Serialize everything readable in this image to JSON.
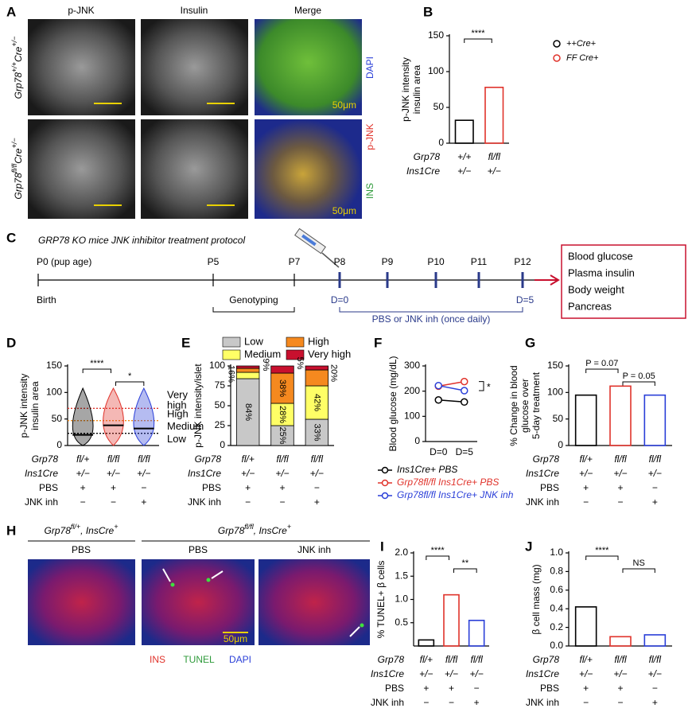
{
  "panel_labels": [
    "A",
    "B",
    "C",
    "D",
    "E",
    "F",
    "G",
    "H",
    "I",
    "J"
  ],
  "panel_a": {
    "columns": [
      "p-JNK",
      "Insulin",
      "Merge"
    ],
    "rows": [
      {
        "gene": "Grp78",
        "allele": "+/+",
        "cre": "Cre",
        "cre_allele": "+/−"
      },
      {
        "gene": "Grp78",
        "allele": "fl/fl",
        "cre": "Cre",
        "cre_allele": "+/−"
      }
    ],
    "channels": [
      "DAPI",
      "p-JNK",
      "INS"
    ],
    "scale_bar": "50μm"
  },
  "timeline": {
    "title": "GRP78 KO mice JNK inhibitor treatment protocol",
    "ages": [
      "P0 (pup age)",
      "P5",
      "P7",
      "P8",
      "P9",
      "P10",
      "P11",
      "P12"
    ],
    "birth": "Birth",
    "genotyping": "Genotyping",
    "treatment_start": "D=0",
    "treatment_end": "D=5",
    "treatment": "PBS or JNK inh (once daily)",
    "outcomes": [
      "Blood glucose",
      "Plasma insulin",
      "Body weight",
      "Pancreas"
    ]
  },
  "panel_h": {
    "groups": [
      {
        "gene": "Grp78",
        "allele": "fl/+",
        "cre": ", InsCre",
        "cre_allele": "+"
      },
      {
        "gene": "Grp78",
        "allele": "fl/fl",
        "cre": ", InsCre",
        "cre_allele": "+"
      }
    ],
    "treatments": [
      "PBS",
      "PBS",
      "JNK inh"
    ],
    "stains": [
      "INS",
      "TUNEL",
      "DAPI"
    ],
    "scale_bar": "50μm"
  },
  "chart_data": [
    {
      "type": "bar",
      "ylabel": [
        "p-JNK intensity",
        "insulin area"
      ],
      "values": [
        32,
        78
      ],
      "colors": [
        "#000000",
        "#e0332b"
      ],
      "ylim": [
        0,
        150
      ],
      "yticks": [
        0,
        50,
        100,
        150
      ],
      "significance": [
        "****"
      ],
      "legend": [
        {
          "name": "++Cre+",
          "color": "#000000"
        },
        {
          "name": "FF Cre+",
          "color": "#e0332b"
        }
      ],
      "conditions": [
        {
          "label": "Grp78",
          "values": [
            "+/+",
            "fl/fl"
          ]
        },
        {
          "label": "Ins1Cre",
          "values": [
            "+/−",
            "+/−"
          ]
        }
      ]
    },
    {
      "type": "violin",
      "ylabel": [
        "p-JNK intensity",
        "insulin area"
      ],
      "values": [
        20,
        38,
        32
      ],
      "colors": [
        "#000000",
        "#e0332b",
        "#2a3fd8"
      ],
      "ylim": [
        0,
        150
      ],
      "yticks": [
        0,
        50,
        100,
        150
      ],
      "significance": [
        "****",
        "*"
      ],
      "thresholds": [
        {
          "value": 70,
          "color": "#e0332b"
        },
        {
          "value": 47,
          "color": "#f08a1c"
        },
        {
          "value": 23,
          "color": "#000000"
        }
      ],
      "levels": [
        [
          "Very",
          "high"
        ],
        [
          "High"
        ],
        [
          "Medium"
        ],
        [
          "Low"
        ]
      ],
      "conditions": [
        {
          "label": "Grp78",
          "values": [
            "fl/+",
            "fl/fl",
            "fl/fl"
          ]
        },
        {
          "label": "Ins1Cre",
          "values": [
            "+/−",
            "+/−",
            "+/−"
          ]
        },
        {
          "label": "PBS",
          "values": [
            "+",
            "+",
            "−"
          ]
        },
        {
          "label": "JNK inh",
          "values": [
            "−",
            "−",
            "+"
          ]
        }
      ]
    },
    {
      "type": "stacked_bar",
      "ylabel": [
        "p-JNK intensity/islet"
      ],
      "series": [
        {
          "name": "Low",
          "color": "#c8c8c8",
          "values": [
            84,
            25,
            33
          ],
          "value_labels": [
            "84%",
            "25%",
            "33%"
          ]
        },
        {
          "name": "Medium",
          "color": "#ffff66",
          "values": [
            8,
            28,
            42
          ],
          "value_labels": [
            null,
            "28%",
            "42%"
          ]
        },
        {
          "name": "High",
          "color": "#f5891f",
          "values": [
            5,
            38,
            20
          ],
          "value_labels": [
            null,
            "38%",
            "20%"
          ]
        },
        {
          "name": "Very high",
          "color": "#c8102e",
          "values": [
            3,
            9,
            5
          ],
          "value_labels": [
            null,
            "9%",
            "5%"
          ]
        }
      ],
      "annotations": [
        "16%"
      ],
      "ylim": [
        0,
        100
      ],
      "yticks": [
        0,
        25,
        50,
        75,
        100
      ],
      "conditions": [
        {
          "label": "Grp78",
          "values": [
            "fl/+",
            "fl/fl",
            "fl/fl"
          ]
        },
        {
          "label": "Ins1Cre",
          "values": [
            "+/−",
            "+/−",
            "+/−"
          ]
        },
        {
          "label": "PBS",
          "values": [
            "+",
            "+",
            "−"
          ]
        },
        {
          "label": "JNK inh",
          "values": [
            "−",
            "−",
            "+"
          ]
        }
      ]
    },
    {
      "type": "line",
      "ylabel": [
        "Blood glucose (mg/dL)"
      ],
      "categories": [
        "D=0",
        "D=5"
      ],
      "series": [
        {
          "name": "Ins1Cre+ PBS",
          "color": "#000000",
          "values": [
            165,
            157
          ]
        },
        {
          "name": "Grp78fl/fl Ins1Cre+ PBS",
          "color": "#e0332b",
          "values": [
            220,
            238
          ]
        },
        {
          "name": "Grp78fl/fl Ins1Cre+ JNK inh",
          "color": "#2a3fd8",
          "values": [
            222,
            202
          ]
        }
      ],
      "ylim": [
        0,
        300
      ],
      "yticks": [
        0,
        100,
        200,
        300
      ],
      "significance": [
        "*"
      ]
    },
    {
      "type": "bar",
      "ylabel": [
        "% Change in blood",
        "glucose over",
        "5-day treatment"
      ],
      "values": [
        95,
        112,
        95
      ],
      "colors": [
        "#000000",
        "#e0332b",
        "#2a3fd8"
      ],
      "ylim": [
        0,
        150
      ],
      "yticks": [
        0,
        50,
        100,
        150
      ],
      "significance": [
        "P = 0.07",
        "P = 0.05"
      ],
      "conditions": [
        {
          "label": "Grp78",
          "values": [
            "fl/+",
            "fl/fl",
            "fl/fl"
          ]
        },
        {
          "label": "Ins1Cre",
          "values": [
            "+/−",
            "+/−",
            "+/−"
          ]
        },
        {
          "label": "PBS",
          "values": [
            "+",
            "+",
            "−"
          ]
        },
        {
          "label": "JNK inh",
          "values": [
            "−",
            "−",
            "+"
          ]
        }
      ]
    },
    {
      "type": "bar",
      "ylabel": [
        "% TUNEL+ β cells"
      ],
      "values": [
        0.13,
        1.1,
        0.55
      ],
      "colors": [
        "#000000",
        "#e0332b",
        "#2a3fd8"
      ],
      "ylim": [
        0,
        2
      ],
      "yticks": [
        0.5,
        {
          "value": 1,
          "label": "1.0"
        },
        1.5,
        {
          "value": 2,
          "label": "2.0"
        }
      ],
      "significance": [
        "****",
        "**"
      ],
      "conditions": [
        {
          "label": "Grp78",
          "values": [
            "fl/+",
            "fl/fl",
            "fl/fl"
          ]
        },
        {
          "label": "Ins1Cre",
          "values": [
            "+/−",
            "+/−",
            "+/−"
          ]
        },
        {
          "label": "PBS",
          "values": [
            "+",
            "+",
            "−"
          ]
        },
        {
          "label": "JNK inh",
          "values": [
            "−",
            "−",
            "+"
          ]
        }
      ]
    },
    {
      "type": "bar",
      "ylabel": [
        "β cell mass (mg)"
      ],
      "values": [
        0.42,
        0.1,
        0.12
      ],
      "colors": [
        "#000000",
        "#e0332b",
        "#2a3fd8"
      ],
      "ylim": [
        0,
        1
      ],
      "yticks": [
        {
          "value": 0,
          "label": "0.0"
        },
        0.2,
        0.4,
        0.6,
        0.8,
        {
          "value": 1,
          "label": "1.0"
        }
      ],
      "significance": [
        "****",
        "NS"
      ],
      "conditions": [
        {
          "label": "Grp78",
          "values": [
            "fl/+",
            "fl/fl",
            "fl/fl"
          ]
        },
        {
          "label": "Ins1Cre",
          "values": [
            "+/−",
            "+/−",
            "+/−"
          ]
        },
        {
          "label": "PBS",
          "values": [
            "+",
            "+",
            "−"
          ]
        },
        {
          "label": "JNK inh",
          "values": [
            "−",
            "−",
            "+"
          ]
        }
      ]
    }
  ]
}
